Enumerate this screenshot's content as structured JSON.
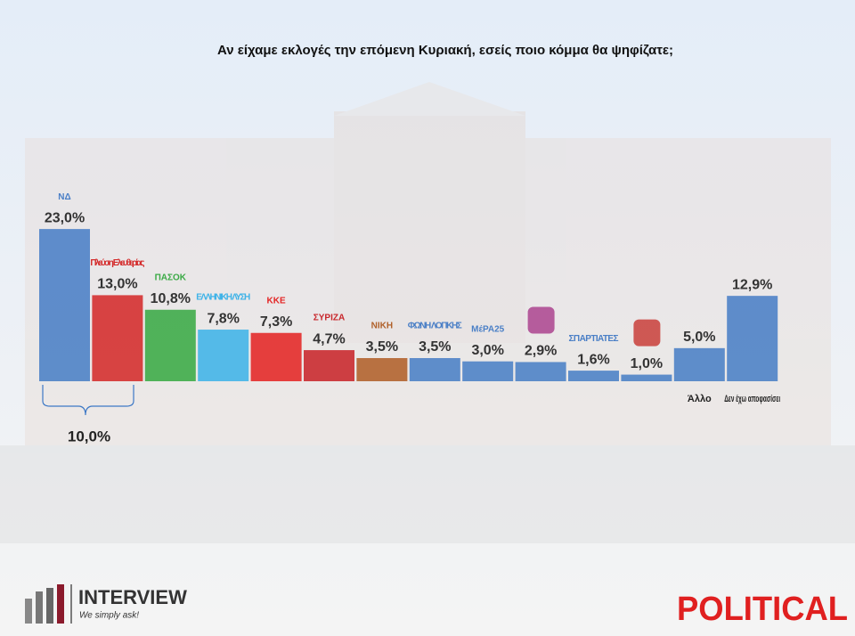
{
  "chart_data": {
    "type": "bar",
    "title": "Αν είχαμε εκλογές την επόμενη Κυριακή, εσείς ποιο κόμμα θα ψηφίζατε;",
    "categories": [
      "ΝΔ",
      "Πλεύση Ελευθερίας",
      "ΠΑΣΟΚ",
      "ΕΛΛΗΝΙΚΗ ΛΥΣΗ",
      "ΚΚΕ",
      "ΣΥΡΙΖΑ",
      "ΝΙΚΗ",
      "ΦΩΝΗ ΛΟΓΙΚΗΣ",
      "ΜέΡΑ25",
      null,
      "ΣΠΑΡΤΙΑΤΕΣ",
      null,
      "Άλλο",
      "Δεν έχω αποφασίσει"
    ],
    "values": [
      23.0,
      13.0,
      10.8,
      7.8,
      7.3,
      4.7,
      3.5,
      3.5,
      3.0,
      2.9,
      1.6,
      1.0,
      5.0,
      12.9
    ],
    "value_labels": [
      "23,0%",
      "13,0%",
      "10,8%",
      "7,8%",
      "7,3%",
      "4,7%",
      "3,5%",
      "3,5%",
      "3,0%",
      "2,9%",
      "1,6%",
      "1,0%",
      "5,0%",
      "12,9%"
    ],
    "colors": [
      "#4a7fc6",
      "#d42b2b",
      "#3aaa45",
      "#3fb3e8",
      "#e42626",
      "#c8262b",
      "#b0602a",
      "#4a7fc6",
      "#4a7fc6",
      "#4a7fc6",
      "#4a7fc6",
      "#4a7fc6",
      "#4a7fc6",
      "#4a7fc6"
    ],
    "annotation": "10,0%",
    "footer_left": "INTERVIEW",
    "footer_left_sub": "We simply ask!",
    "footer_right": "POLITICAL"
  }
}
